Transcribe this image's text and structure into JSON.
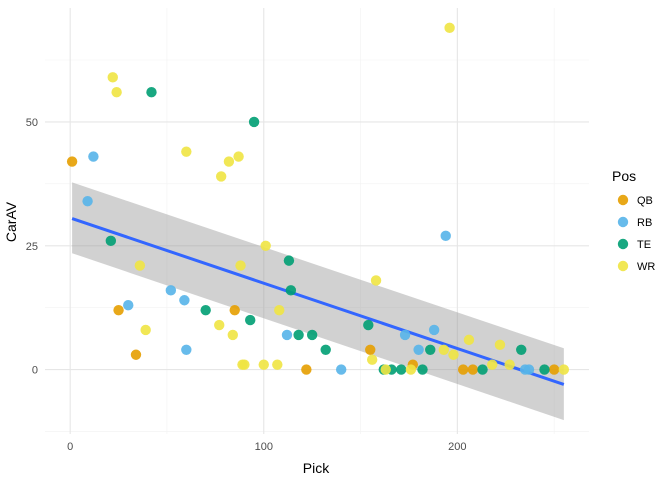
{
  "chart_data": {
    "type": "scatter",
    "title": "",
    "xlabel": "Pick",
    "ylabel": "CarAV",
    "xlim": [
      -13,
      268
    ],
    "ylim": [
      -13,
      73
    ],
    "x_ticks": [
      0,
      100,
      200
    ],
    "y_ticks": [
      0,
      25,
      50
    ],
    "grid": true,
    "legend": {
      "title": "Pos",
      "position": "right",
      "entries": [
        {
          "name": "QB",
          "color": "#E69F00"
        },
        {
          "name": "RB",
          "color": "#56B4E9"
        },
        {
          "name": "TE",
          "color": "#009E73"
        },
        {
          "name": "WR",
          "color": "#F0E442"
        }
      ]
    },
    "series": [
      {
        "name": "QB",
        "color": "#E69F00",
        "points": [
          [
            1,
            42
          ],
          [
            25,
            12
          ],
          [
            34,
            3
          ],
          [
            85,
            12
          ],
          [
            122,
            0
          ],
          [
            155,
            4
          ],
          [
            177,
            1
          ],
          [
            203,
            0
          ],
          [
            208,
            0
          ],
          [
            250,
            0
          ]
        ]
      },
      {
        "name": "RB",
        "color": "#56B4E9",
        "points": [
          [
            9,
            34
          ],
          [
            12,
            43
          ],
          [
            30,
            13
          ],
          [
            52,
            16
          ],
          [
            59,
            14
          ],
          [
            60,
            4
          ],
          [
            112,
            7
          ],
          [
            140,
            0
          ],
          [
            173,
            7
          ],
          [
            180,
            4
          ],
          [
            188,
            8
          ],
          [
            194,
            27
          ],
          [
            235,
            0
          ],
          [
            237,
            0
          ]
        ]
      },
      {
        "name": "TE",
        "color": "#009E73",
        "points": [
          [
            21,
            26
          ],
          [
            42,
            56
          ],
          [
            70,
            12
          ],
          [
            93,
            10
          ],
          [
            95,
            50
          ],
          [
            113,
            22
          ],
          [
            114,
            16
          ],
          [
            118,
            7
          ],
          [
            125,
            7
          ],
          [
            132,
            4
          ],
          [
            154,
            9
          ],
          [
            162,
            0
          ],
          [
            166,
            0
          ],
          [
            171,
            0
          ],
          [
            182,
            0
          ],
          [
            186,
            4
          ],
          [
            213,
            0
          ],
          [
            233,
            4
          ],
          [
            245,
            0
          ]
        ]
      },
      {
        "name": "WR",
        "color": "#F0E442",
        "points": [
          [
            22,
            59
          ],
          [
            24,
            56
          ],
          [
            36,
            21
          ],
          [
            39,
            8
          ],
          [
            60,
            44
          ],
          [
            77,
            9
          ],
          [
            78,
            39
          ],
          [
            82,
            42
          ],
          [
            84,
            7
          ],
          [
            87,
            43
          ],
          [
            88,
            21
          ],
          [
            89,
            1
          ],
          [
            90,
            1
          ],
          [
            100,
            1
          ],
          [
            101,
            25
          ],
          [
            107,
            1
          ],
          [
            108,
            12
          ],
          [
            156,
            2
          ],
          [
            158,
            18
          ],
          [
            163,
            0
          ],
          [
            176,
            0
          ],
          [
            193,
            4
          ],
          [
            196,
            69
          ],
          [
            198,
            3
          ],
          [
            206,
            6
          ],
          [
            218,
            1
          ],
          [
            222,
            5
          ],
          [
            227,
            1
          ],
          [
            255,
            0
          ]
        ]
      }
    ],
    "trend_line": {
      "method": "linear",
      "color": "#3366FF",
      "band_color": "#999999",
      "x": [
        1,
        255
      ],
      "y": [
        30.5,
        -3
      ],
      "band_upper": [
        37.8,
        4.3
      ],
      "band_lower": [
        23.5,
        -10.2
      ]
    }
  }
}
